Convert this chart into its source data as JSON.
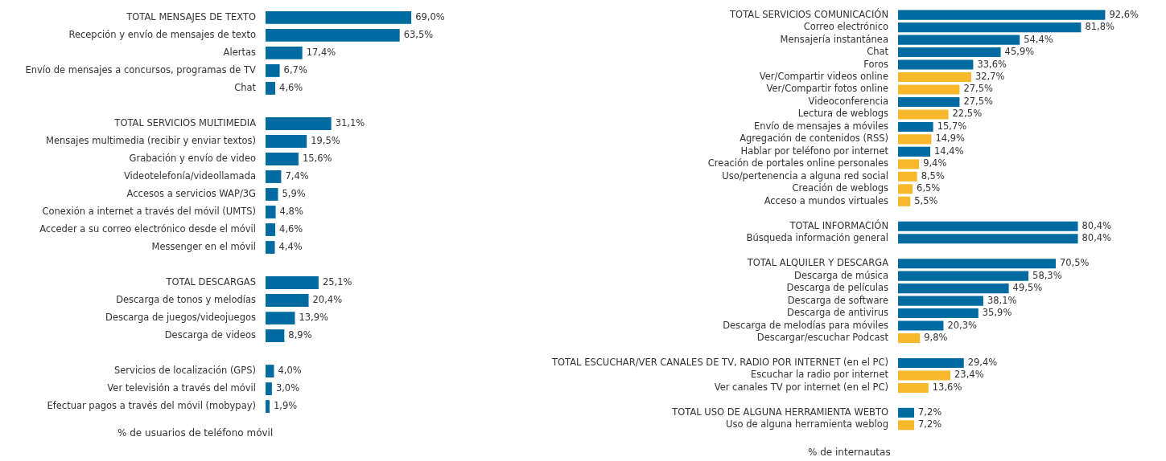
{
  "chart_data": [
    {
      "type": "bar",
      "orientation": "horizontal",
      "tick_labels": "y",
      "data_labels": true,
      "categories": [
        "TOTAL MENSAJES DE TEXTO",
        "Recepción y envío de mensajes de texto",
        "Alertas",
        "Envío de mensajes a concursos, programas de TV",
        "Chat",
        null,
        "TOTAL SERVICIOS MULTIMEDIA",
        "Mensajes multimedia (recibir y enviar textos)",
        "Grabación y envío de video",
        "Videotelefonía/videollamada",
        "Accesos a servicios WAP/3G",
        "Conexión a internet a través del móvil (UMTS)",
        "Acceder a su correo electrónico desde el móvil",
        "Messenger en el móvil",
        null,
        "TOTAL DESCARGAS",
        "Descarga de tonos y melodías",
        "Descarga de juegos/videojuegos",
        "Descarga de videos",
        null,
        "Servicios de localización (GPS)",
        "Ver televisión a través del móvil",
        "Efectuar pagos a través del móvil (mobypay)"
      ],
      "values": [
        69.0,
        63.5,
        17.4,
        6.7,
        4.6,
        null,
        31.1,
        19.5,
        15.6,
        7.4,
        5.9,
        4.8,
        4.6,
        4.4,
        null,
        25.1,
        20.4,
        13.9,
        8.9,
        null,
        4.0,
        3.0,
        1.9
      ],
      "value_labels": [
        "69,0%",
        "63,5%",
        "17,4%",
        "6,7%",
        "4,6%",
        null,
        "31,1%",
        "19,5%",
        "15,6%",
        "7,4%",
        "5,9%",
        "4,8%",
        "4,6%",
        "4,4%",
        null,
        "25,1%",
        "20,4%",
        "13,9%",
        "8,9%",
        null,
        "4,0%",
        "3,0%",
        "1,9%"
      ],
      "color": "#006ba1",
      "annotations": [
        "% de usuarios de teléfono móvil"
      ]
    },
    {
      "type": "bar",
      "orientation": "horizontal",
      "tick_labels": "y",
      "data_labels": true,
      "categories": [
        "TOTAL SERVICIOS COMUNICACIÓN",
        "Correo electrónico",
        "Mensajería instantánea",
        "Chat",
        "Foros",
        "Ver/Compartir videos online",
        "Ver/Compartir fotos online",
        "Videoconferencia",
        "Lectura de weblogs",
        "Envío de mensajes a móviles",
        "Agregación de contenidos (RSS)",
        "Hablar por teléfono por internet",
        "Creación de portales online personales",
        "Uso/pertenencia a alguna red social",
        "Creación de weblogs",
        "Acceso a mundos virtuales",
        null,
        "TOTAL INFORMACIÓN",
        "Búsqueda información general",
        null,
        "TOTAL ALQUILER Y DESCARGA",
        "Descarga de música",
        "Descarga de películas",
        "Descarga de software",
        "Descarga de antivirus",
        "Descarga de melodías para móviles",
        "Descargar/escuchar Podcast",
        null,
        "TOTAL ESCUCHAR/VER CANALES DE TV, RADIO POR INTERNET (en el PC)",
        "Escuchar la radio por internet",
        "Ver canales TV por internet (en el PC)",
        null,
        "TOTAL USO DE ALGUNA HERRAMIENTA WEBTO",
        "Uso de alguna herramienta weblog"
      ],
      "values": [
        92.6,
        81.8,
        54.4,
        45.9,
        33.6,
        32.7,
        27.5,
        27.5,
        22.5,
        15.7,
        14.9,
        14.4,
        9.4,
        8.5,
        6.5,
        5.5,
        null,
        80.4,
        80.4,
        null,
        70.5,
        58.3,
        49.5,
        38.1,
        35.9,
        20.3,
        9.8,
        null,
        29.4,
        23.4,
        13.6,
        null,
        7.2,
        7.2
      ],
      "value_labels": [
        "92,6%",
        "81,8%",
        "54,4%",
        "45,9%",
        "33,6%",
        "32,7%",
        "27,5%",
        "27,5%",
        "22,5%",
        "15,7%",
        "14,9%",
        "14,4%",
        "9,4%",
        "8,5%",
        "6,5%",
        "5,5%",
        null,
        "80,4%",
        "80,4%",
        null,
        "70,5%",
        "58,3%",
        "49,5%",
        "38,1%",
        "35,9%",
        "20,3%",
        "9,8%",
        null,
        "29,4%",
        "23,4%",
        "13,6%",
        null,
        "7,2%",
        "7,2%"
      ],
      "colors": [
        "#006ba1",
        "#006ba1",
        "#006ba1",
        "#006ba1",
        "#006ba1",
        "#f7b92b",
        "#f7b92b",
        "#006ba1",
        "#f7b92b",
        "#006ba1",
        "#f7b92b",
        "#006ba1",
        "#f7b92b",
        "#f7b92b",
        "#f7b92b",
        "#f7b92b",
        null,
        "#006ba1",
        "#006ba1",
        null,
        "#006ba1",
        "#006ba1",
        "#006ba1",
        "#006ba1",
        "#006ba1",
        "#006ba1",
        "#f7b92b",
        null,
        "#006ba1",
        "#f7b92b",
        "#f7b92b",
        null,
        "#006ba1",
        "#f7b92b"
      ],
      "annotations": [
        "% de internautas"
      ]
    }
  ]
}
